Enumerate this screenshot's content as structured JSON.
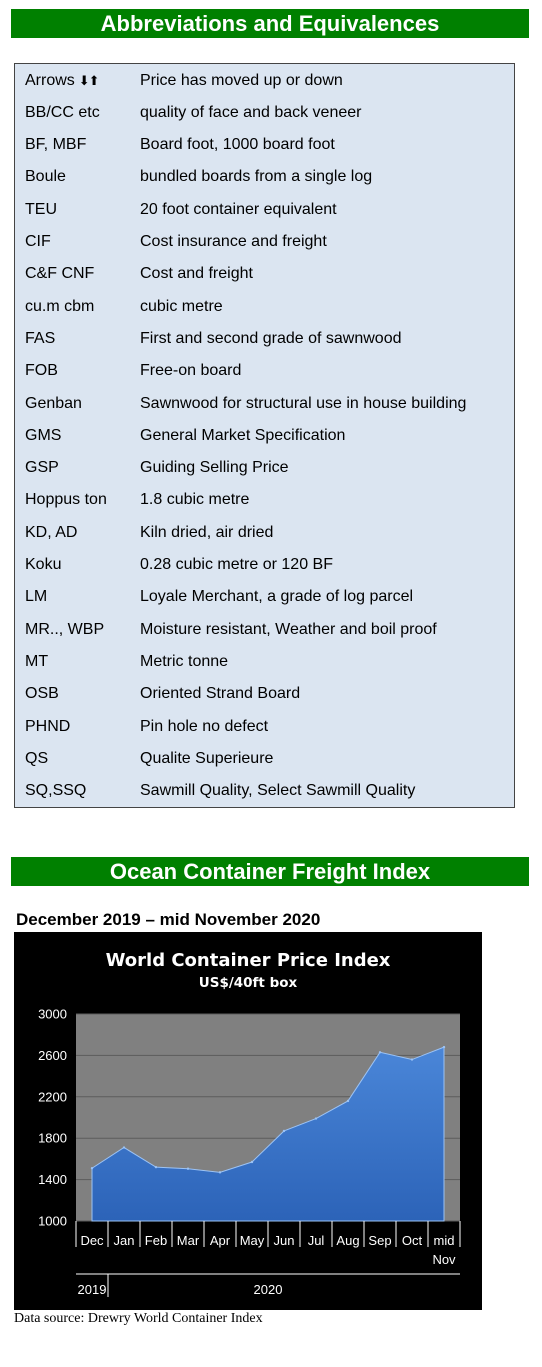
{
  "abbreviations": {
    "heading": "Abbreviations and Equivalences",
    "items": [
      {
        "term": "Arrows",
        "icon": "up-down-arrows-icon",
        "definition": "Price has moved up or down"
      },
      {
        "term": "BB/CC etc",
        "definition": "quality of face and back veneer"
      },
      {
        "term": "BF, MBF",
        "definition": "Board foot, 1000 board foot"
      },
      {
        "term": "Boule",
        "definition": "bundled boards from a single log"
      },
      {
        "term": "TEU",
        "definition": "20 foot container equivalent"
      },
      {
        "term": "CIF",
        "definition": "Cost insurance and freight"
      },
      {
        "term": "C&F CNF",
        "definition": "Cost and freight"
      },
      {
        "term": "cu.m cbm",
        "definition": "cubic metre"
      },
      {
        "term": "FAS",
        "definition": "First and second grade of sawnwood"
      },
      {
        "term": "FOB",
        "definition": "Free-on board"
      },
      {
        "term": "Genban",
        "definition": "Sawnwood for structural use in house building"
      },
      {
        "term": "GMS",
        "definition": "General Market Specification"
      },
      {
        "term": "GSP",
        "definition": "Guiding Selling Price"
      },
      {
        "term": "Hoppus ton",
        "definition": "1.8 cubic metre"
      },
      {
        "term": "KD, AD",
        "definition": "Kiln dried, air dried"
      },
      {
        "term": "Koku",
        "definition": "0.28 cubic metre or 120 BF"
      },
      {
        "term": "LM",
        "definition": "Loyale Merchant, a grade of log parcel"
      },
      {
        "term": "MR.., WBP",
        "definition": "Moisture resistant, Weather and boil proof"
      },
      {
        "term": "MT",
        "definition": "Metric tonne"
      },
      {
        "term": "OSB",
        "definition": "Oriented Strand Board"
      },
      {
        "term": "PHND",
        "definition": "Pin hole no defect"
      },
      {
        "term": "QS",
        "definition": "Qualite Superieure"
      },
      {
        "term": "SQ,SSQ",
        "definition": "Sawmill Quality, Select Sawmill Quality"
      }
    ]
  },
  "freight": {
    "heading": "Ocean Container Freight Index",
    "period": "December 2019 – mid November 2020",
    "source": "Data source:  Drewry World Container Index"
  },
  "chart_data": {
    "type": "area",
    "title": "World Container Price Index",
    "subtitle": "US$/40ft box",
    "categories": [
      "Dec",
      "Jan",
      "Feb",
      "Mar",
      "Apr",
      "May",
      "Jun",
      "Jul",
      "Aug",
      "Sep",
      "Oct",
      "mid Nov"
    ],
    "category_lines": [
      [
        "Dec"
      ],
      [
        "Jan"
      ],
      [
        "Feb"
      ],
      [
        "Mar"
      ],
      [
        "Apr"
      ],
      [
        "May"
      ],
      [
        "Jun"
      ],
      [
        "Jul"
      ],
      [
        "Aug"
      ],
      [
        "Sep"
      ],
      [
        "Oct"
      ],
      [
        "mid",
        "Nov"
      ]
    ],
    "years": [
      {
        "label": "2019",
        "at_index": 0
      },
      {
        "label": "2020",
        "at_index": 6
      }
    ],
    "values": [
      1510,
      1710,
      1520,
      1505,
      1470,
      1570,
      1870,
      1990,
      2160,
      2630,
      2560,
      2680
    ],
    "ylim": [
      1000,
      3000
    ],
    "yticks": [
      1000,
      1400,
      1800,
      2200,
      2600,
      3000
    ],
    "grid": true,
    "colors": {
      "background": "#000000",
      "plot_area": "#808080",
      "fill": "#4a86d8",
      "fill_dark": "#2c63b8",
      "gridline": "#5c5c5c"
    }
  }
}
